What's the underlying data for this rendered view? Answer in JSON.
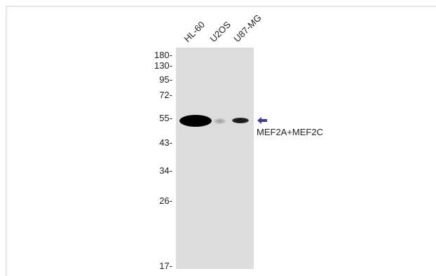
{
  "lanes": [
    {
      "label": "HL-60"
    },
    {
      "label": "U2OS"
    },
    {
      "label": "U87-MG"
    }
  ],
  "markers": [
    "180-",
    "130-",
    "95-",
    "72-",
    "55-",
    "43-",
    "34-",
    "26-",
    "17-"
  ],
  "target": {
    "label": "MEF2A+MEF2C",
    "arrow_color": "#3c3a9a"
  },
  "membrane_color": "#dcdcdc"
}
